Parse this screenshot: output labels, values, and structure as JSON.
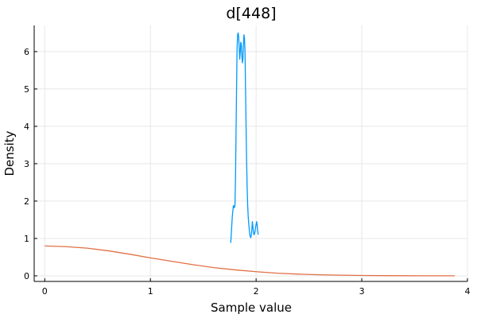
{
  "chart_data": {
    "type": "line",
    "title": "d[448]",
    "xlabel": "Sample value",
    "ylabel": "Density",
    "xlim": [
      -0.1,
      4.0
    ],
    "ylim": [
      -0.15,
      6.7
    ],
    "xticks": [
      0,
      1,
      2,
      3,
      4
    ],
    "yticks": [
      0,
      1,
      2,
      3,
      4,
      5,
      6
    ],
    "grid": true,
    "legend": "none",
    "series": [
      {
        "color": "#009AFA",
        "x": [
          1.76,
          1.775,
          1.785,
          1.795,
          1.8,
          1.805,
          1.81,
          1.815,
          1.82,
          1.825,
          1.83,
          1.835,
          1.84,
          1.845,
          1.85,
          1.855,
          1.86,
          1.865,
          1.87,
          1.875,
          1.88,
          1.885,
          1.89,
          1.895,
          1.9,
          1.905,
          1.91,
          1.915,
          1.92,
          1.925,
          1.93,
          1.935,
          1.94,
          1.945,
          1.95,
          1.955,
          1.96,
          1.965,
          1.97,
          1.975,
          1.98,
          1.985,
          1.99,
          1.995,
          2.0,
          2.005,
          2.01,
          2.015,
          2.02
        ],
        "values": [
          0.88,
          1.6,
          1.88,
          1.82,
          1.9,
          2.6,
          3.8,
          5.0,
          6.1,
          6.45,
          6.5,
          6.4,
          6.1,
          5.8,
          6.0,
          6.25,
          6.2,
          5.9,
          5.7,
          5.8,
          6.2,
          6.45,
          6.35,
          6.0,
          5.0,
          4.0,
          3.1,
          2.4,
          1.9,
          1.6,
          1.4,
          1.25,
          1.1,
          1.05,
          1.02,
          1.1,
          1.25,
          1.45,
          1.3,
          1.15,
          1.1,
          1.12,
          1.2,
          1.3,
          1.38,
          1.45,
          1.35,
          1.2,
          1.1
        ]
      },
      {
        "color": "#E26F46",
        "x": [
          0,
          0.2,
          0.4,
          0.6,
          0.8,
          1.0,
          1.2,
          1.4,
          1.6,
          1.8,
          2.0,
          2.2,
          2.4,
          2.6,
          2.8,
          3.0,
          3.2,
          3.4,
          3.6,
          3.88
        ],
        "values": [
          0.8,
          0.78,
          0.74,
          0.67,
          0.58,
          0.48,
          0.39,
          0.3,
          0.22,
          0.16,
          0.11,
          0.07,
          0.045,
          0.028,
          0.017,
          0.01,
          0.006,
          0.003,
          0.002,
          0.001
        ]
      }
    ]
  }
}
